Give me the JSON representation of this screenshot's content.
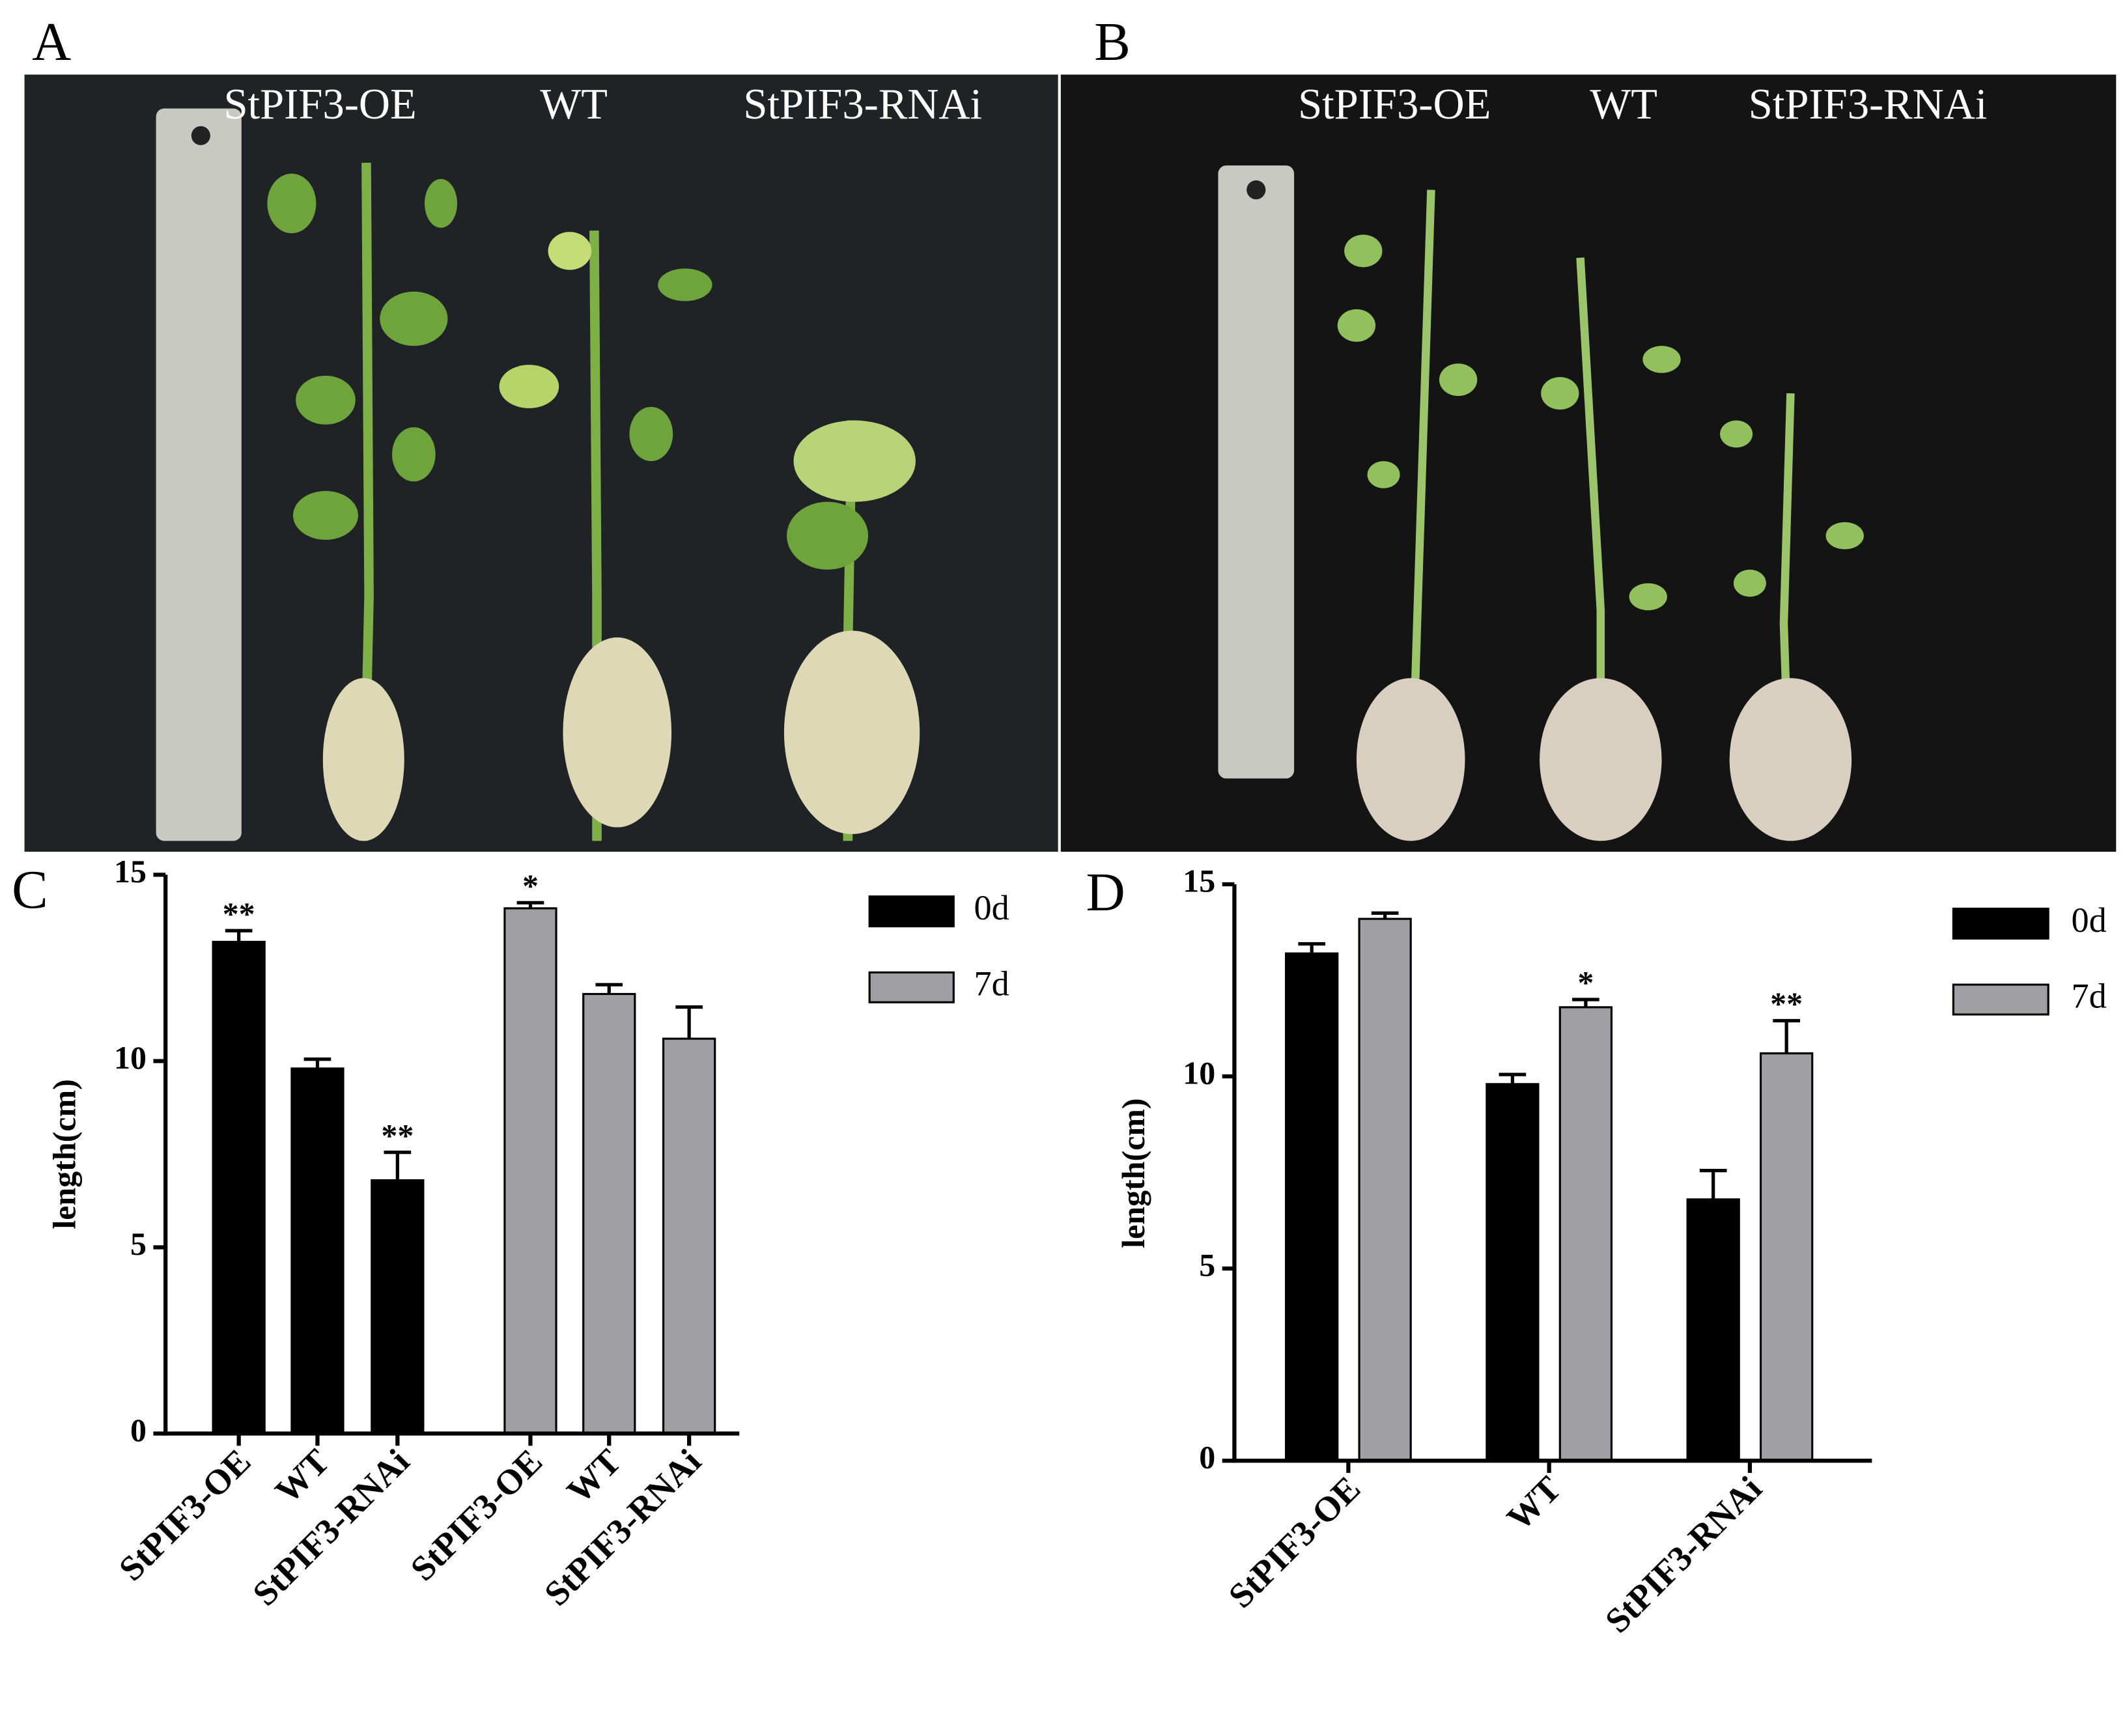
{
  "photos": [
    {
      "label": "A",
      "groups": [
        "StPIF3-OE",
        "WT",
        "StPIF3-RNAi"
      ]
    },
    {
      "label": "B",
      "groups": [
        "StPIF3-OE",
        "WT",
        "StPIF3-RNAi"
      ]
    }
  ],
  "chart_data": [
    {
      "type": "bar",
      "label": "C",
      "ylabel": "length(cm)",
      "categories": [
        "StPIF3-OE",
        "WT",
        "StPIF3-RNAi",
        "StPIF3-OE",
        "WT",
        "StPIF3-RNAi"
      ],
      "series": [
        {
          "name": "0d",
          "color": "#000000",
          "values": [
            13.2,
            9.8,
            6.8,
            null,
            null,
            null
          ],
          "errors": [
            0.3,
            0.25,
            0.75,
            null,
            null,
            null
          ],
          "annotations": [
            "**",
            null,
            "**",
            null,
            null,
            null
          ]
        },
        {
          "name": "7d",
          "color": "#a0a0a4",
          "values": [
            null,
            null,
            null,
            14.1,
            11.8,
            10.6
          ],
          "errors": [
            null,
            null,
            null,
            0.15,
            0.25,
            0.85
          ],
          "annotations": [
            null,
            null,
            null,
            "*",
            null,
            null
          ]
        }
      ],
      "ylim": [
        0,
        15
      ],
      "yticks": [
        0,
        5,
        10,
        15
      ]
    },
    {
      "type": "bar",
      "label": "D",
      "ylabel": "length(cm)",
      "categories": [
        "StPIF3-OE",
        "WT",
        "StPIF3-RNAi"
      ],
      "series": [
        {
          "name": "0d",
          "color": "#000000",
          "values": [
            13.2,
            9.8,
            6.8
          ],
          "errors": [
            0.25,
            0.25,
            0.75
          ],
          "annotations": [
            null,
            null,
            null
          ]
        },
        {
          "name": "7d",
          "color": "#a0a0a4",
          "values": [
            14.1,
            11.8,
            10.6
          ],
          "errors": [
            0.15,
            0.2,
            0.85
          ],
          "annotations": [
            null,
            "*",
            "**"
          ]
        }
      ],
      "ylim": [
        0,
        15
      ],
      "yticks": [
        0,
        5,
        10,
        15
      ]
    }
  ]
}
